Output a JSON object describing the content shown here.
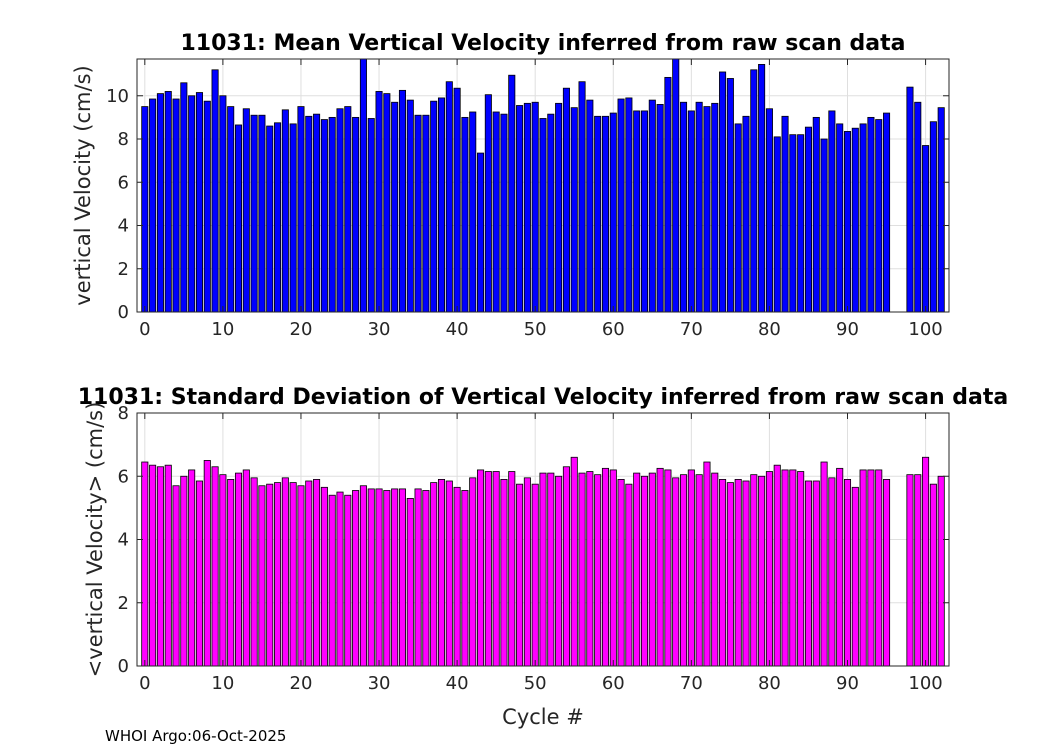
{
  "chart_data": [
    {
      "type": "bar",
      "title": "11031: Mean Vertical Velocity inferred from raw scan data",
      "xlabel": "",
      "ylabel": "vertical Velocity (cm/s)",
      "xlim": [
        -1,
        103
      ],
      "ylim": [
        0,
        11.7
      ],
      "xticks": [
        0,
        10,
        20,
        30,
        40,
        50,
        60,
        70,
        80,
        90,
        100
      ],
      "yticks": [
        0,
        2,
        4,
        6,
        8,
        10
      ],
      "grid": true,
      "bar_color": "#0000ff",
      "edge_color": "#000000",
      "x": [
        0,
        1,
        2,
        3,
        4,
        5,
        6,
        7,
        8,
        9,
        10,
        11,
        12,
        13,
        14,
        15,
        16,
        17,
        18,
        19,
        20,
        21,
        22,
        23,
        24,
        25,
        26,
        27,
        28,
        29,
        30,
        31,
        32,
        33,
        34,
        35,
        36,
        37,
        38,
        39,
        40,
        41,
        42,
        43,
        44,
        45,
        46,
        47,
        48,
        49,
        50,
        51,
        52,
        53,
        54,
        55,
        56,
        57,
        58,
        59,
        60,
        61,
        62,
        63,
        64,
        65,
        66,
        67,
        68,
        69,
        70,
        71,
        72,
        73,
        74,
        75,
        76,
        77,
        78,
        79,
        80,
        81,
        82,
        83,
        84,
        85,
        86,
        87,
        88,
        89,
        90,
        91,
        92,
        93,
        94,
        95,
        98,
        99,
        100,
        101,
        102
      ],
      "values": [
        9.5,
        9.85,
        10.1,
        10.2,
        9.85,
        10.6,
        10,
        10.15,
        9.75,
        11.2,
        10,
        9.5,
        8.65,
        9.4,
        9.1,
        9.1,
        8.6,
        8.75,
        9.35,
        8.7,
        9.5,
        9.05,
        9.15,
        8.9,
        9,
        9.4,
        9.5,
        9,
        11.7,
        8.95,
        10.2,
        10.1,
        9.7,
        10.25,
        9.8,
        9.1,
        9.1,
        9.75,
        9.9,
        10.65,
        10.35,
        9,
        9.25,
        7.35,
        10.05,
        9.25,
        9.15,
        10.95,
        9.55,
        9.65,
        9.7,
        8.95,
        9.15,
        9.65,
        10.35,
        9.45,
        10.65,
        9.8,
        9.05,
        9.05,
        9.2,
        9.85,
        9.9,
        9.3,
        9.3,
        9.8,
        9.6,
        10.85,
        11.7,
        9.7,
        9.3,
        9.7,
        9.5,
        9.65,
        11.1,
        10.8,
        8.7,
        9.05,
        11.2,
        11.45,
        9.4,
        8.1,
        9.05,
        8.2,
        8.2,
        8.55,
        9,
        8,
        9.3,
        8.7,
        8.35,
        8.5,
        8.7,
        9,
        8.9,
        9.2,
        10.4,
        9.7,
        7.7,
        8.8,
        9.45
      ]
    },
    {
      "type": "bar",
      "title": "11031: Standard Deviation of Vertical Velocity inferred from raw scan data",
      "xlabel": "Cycle #",
      "ylabel": "<vertical Velocity> (cm/s)",
      "xlim": [
        -1,
        103
      ],
      "ylim": [
        0,
        8
      ],
      "xticks": [
        0,
        10,
        20,
        30,
        40,
        50,
        60,
        70,
        80,
        90,
        100
      ],
      "yticks": [
        0,
        2,
        4,
        6,
        8
      ],
      "grid": true,
      "bar_color": "#ff00ff",
      "edge_color": "#000000",
      "x": [
        0,
        1,
        2,
        3,
        4,
        5,
        6,
        7,
        8,
        9,
        10,
        11,
        12,
        13,
        14,
        15,
        16,
        17,
        18,
        19,
        20,
        21,
        22,
        23,
        24,
        25,
        26,
        27,
        28,
        29,
        30,
        31,
        32,
        33,
        34,
        35,
        36,
        37,
        38,
        39,
        40,
        41,
        42,
        43,
        44,
        45,
        46,
        47,
        48,
        49,
        50,
        51,
        52,
        53,
        54,
        55,
        56,
        57,
        58,
        59,
        60,
        61,
        62,
        63,
        64,
        65,
        66,
        67,
        68,
        69,
        70,
        71,
        72,
        73,
        74,
        75,
        76,
        77,
        78,
        79,
        80,
        81,
        82,
        83,
        84,
        85,
        86,
        87,
        88,
        89,
        90,
        91,
        92,
        93,
        94,
        95,
        98,
        99,
        100,
        101,
        102
      ],
      "values": [
        6.45,
        6.35,
        6.3,
        6.35,
        5.7,
        6,
        6.2,
        5.85,
        6.5,
        6.3,
        6.05,
        5.9,
        6.1,
        6.2,
        5.95,
        5.7,
        5.75,
        5.8,
        5.95,
        5.8,
        5.7,
        5.85,
        5.9,
        5.65,
        5.4,
        5.5,
        5.4,
        5.55,
        5.7,
        5.6,
        5.6,
        5.55,
        5.6,
        5.6,
        5.3,
        5.6,
        5.55,
        5.8,
        5.9,
        5.85,
        5.65,
        5.55,
        5.95,
        6.2,
        6.15,
        6.15,
        5.9,
        6.15,
        5.75,
        5.95,
        5.75,
        6.1,
        6.1,
        6,
        6.3,
        6.6,
        6.1,
        6.15,
        6.05,
        6.25,
        6.2,
        5.9,
        5.75,
        6.1,
        6,
        6.1,
        6.25,
        6.2,
        5.95,
        6.05,
        6.2,
        6.05,
        6.45,
        6.1,
        5.9,
        5.8,
        5.9,
        5.85,
        6.05,
        6,
        6.15,
        6.35,
        6.2,
        6.2,
        6.15,
        5.85,
        5.85,
        6.45,
        5.95,
        6.25,
        5.9,
        5.65,
        6.2,
        6.2,
        6.2,
        5.9,
        6.05,
        6.05,
        6.6,
        5.75,
        6
      ]
    }
  ],
  "footer": "WHOI Argo:06-Oct-2025"
}
